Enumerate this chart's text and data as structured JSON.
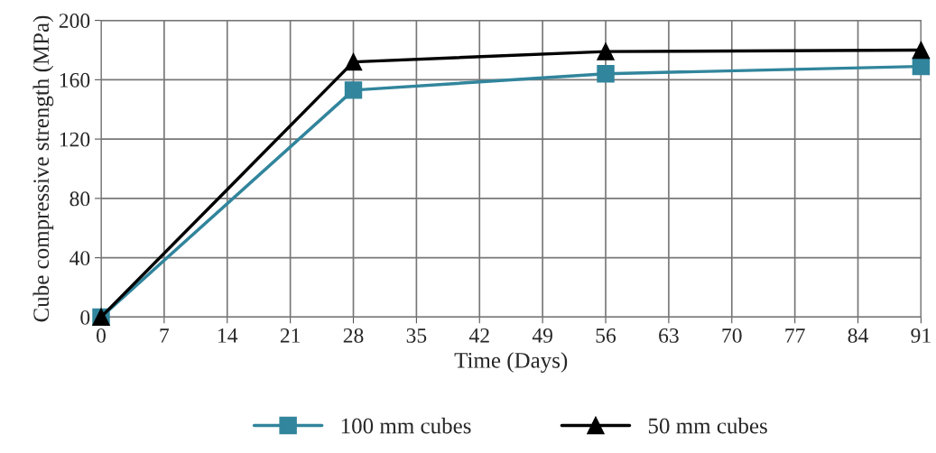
{
  "chart_data": {
    "type": "line",
    "xlabel": "Time (Days)",
    "ylabel": "Cube compressive strength (MPa)",
    "xlim": [
      0,
      91
    ],
    "xticks": [
      0,
      7,
      14,
      21,
      28,
      35,
      42,
      49,
      56,
      63,
      70,
      77,
      84,
      91
    ],
    "ylim": [
      0,
      200
    ],
    "yticks": [
      0,
      40,
      80,
      120,
      160,
      200
    ],
    "grid": true,
    "legend": "bottom",
    "series": [
      {
        "name": "100 mm cubes",
        "color": "#31859c",
        "marker": "square",
        "x": [
          0,
          28,
          56,
          91
        ],
        "values": [
          0,
          153,
          164,
          169
        ]
      },
      {
        "name": "50 mm cubes",
        "color": "#000000",
        "marker": "triangle",
        "x": [
          0,
          28,
          56,
          91
        ],
        "values": [
          0,
          172,
          179,
          180
        ]
      }
    ]
  }
}
